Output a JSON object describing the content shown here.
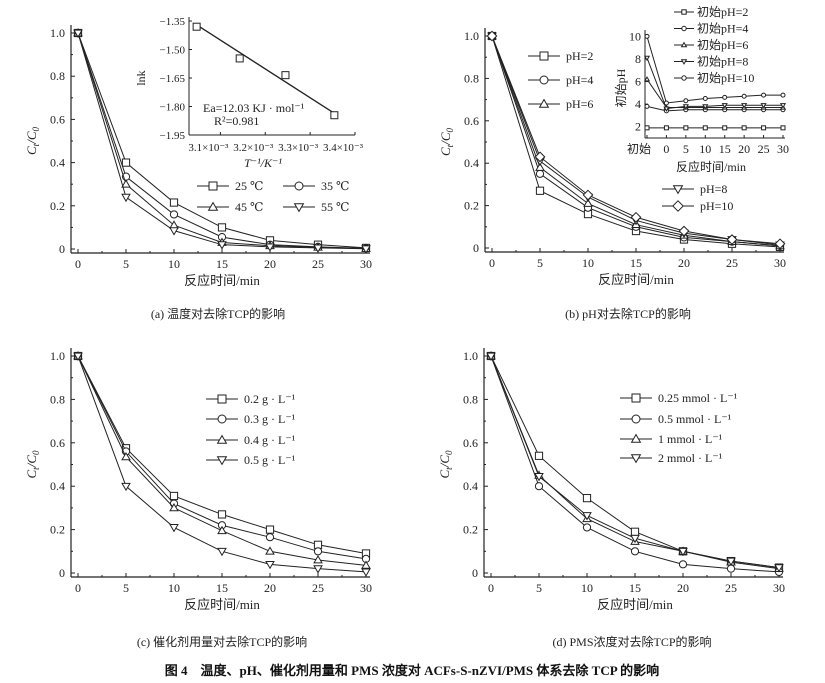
{
  "figure_caption": "图 4　温度、pH、催化剂用量和 PMS 浓度对 ACFs-S-nZVI/PMS 体系去除 TCP 的影响",
  "chart_data": [
    {
      "id": "a",
      "type": "line",
      "caption": "(a) 温度对去除TCP的影响",
      "xlabel": "反应时间/min",
      "ylabel_main": "C",
      "ylabel_sub1": "t",
      "ylabel_mid": "/C",
      "ylabel_sub2": "0",
      "xlim": [
        0,
        30
      ],
      "ylim": [
        0,
        1.0
      ],
      "x_ticks": [
        "0",
        "5",
        "10",
        "15",
        "20",
        "25",
        "30"
      ],
      "y_ticks": [
        "0",
        "0.2",
        "0.4",
        "0.6",
        "0.8",
        "1.0"
      ],
      "x": [
        0,
        5,
        10,
        15,
        20,
        25,
        30
      ],
      "series": [
        {
          "name": "25 ℃",
          "marker": "square",
          "values": [
            1,
            0.4,
            0.215,
            0.1,
            0.04,
            0.02,
            0.005
          ]
        },
        {
          "name": "35 ℃",
          "marker": "circle",
          "values": [
            1,
            0.335,
            0.16,
            0.055,
            0.02,
            0.01,
            0.003
          ]
        },
        {
          "name": "45 ℃",
          "marker": "triangle-up",
          "values": [
            1,
            0.3,
            0.11,
            0.03,
            0.015,
            0.008,
            0.002
          ]
        },
        {
          "name": "55 ℃",
          "marker": "triangle-down",
          "values": [
            1,
            0.24,
            0.085,
            0.02,
            0.01,
            0.005,
            0.001
          ]
        }
      ],
      "inset": {
        "type": "scatter-with-fit",
        "ylabel": "lnk",
        "xlabel": "T⁻¹/K⁻¹",
        "xlim": [
          0.00303,
          0.0034
        ],
        "ylim": [
          -1.95,
          -1.35
        ],
        "x_ticks": [
          0.0031,
          0.0032,
          0.0033,
          0.0034
        ],
        "x_tick_labels": [
          "3.1×10⁻³",
          "3.2×10⁻³",
          "3.3×10⁻³",
          "3.4×10⁻³"
        ],
        "y_ticks": [
          -1.35,
          -1.5,
          -1.65,
          -1.8,
          -1.95
        ],
        "y_tick_labels": [
          "−1.35",
          "−1.50",
          "−1.65",
          "−1.80",
          "−1.95"
        ],
        "points": [
          [
            0.003047,
            -1.38
          ],
          [
            0.003143,
            -1.547
          ],
          [
            0.003245,
            -1.635
          ],
          [
            0.003354,
            -1.846
          ]
        ],
        "fit_line": [
          [
            0.003047,
            -1.37
          ],
          [
            0.003354,
            -1.836
          ]
        ],
        "annotation_ea": "Ea=12.03 KJ · mol⁻¹",
        "annotation_r2": "R²=0.981"
      }
    },
    {
      "id": "b",
      "type": "line",
      "caption": "(b) pH对去除TCP的影响",
      "xlabel": "反应时间/min",
      "ylabel_main": "C",
      "ylabel_sub1": "t",
      "ylabel_mid": "/C",
      "ylabel_sub2": "0",
      "xlim": [
        0,
        30
      ],
      "ylim": [
        0,
        1.0
      ],
      "x_ticks": [
        "0",
        "5",
        "10",
        "15",
        "20",
        "25",
        "30"
      ],
      "y_ticks": [
        "0",
        "0.2",
        "0.4",
        "0.6",
        "0.8",
        "1.0"
      ],
      "x": [
        0,
        5,
        10,
        15,
        20,
        25,
        30
      ],
      "series": [
        {
          "name": "pH=2",
          "marker": "square",
          "values": [
            1,
            0.27,
            0.16,
            0.08,
            0.04,
            0.02,
            0.005
          ]
        },
        {
          "name": "pH=4",
          "marker": "circle",
          "values": [
            1,
            0.35,
            0.19,
            0.1,
            0.05,
            0.03,
            0.01
          ]
        },
        {
          "name": "pH=6",
          "marker": "triangle-up",
          "values": [
            1,
            0.38,
            0.21,
            0.11,
            0.06,
            0.03,
            0.01
          ]
        },
        {
          "name": "pH=8",
          "marker": "triangle-down",
          "values": [
            1,
            0.41,
            0.24,
            0.13,
            0.07,
            0.04,
            0.015
          ]
        },
        {
          "name": "pH=10",
          "marker": "diamond",
          "values": [
            1,
            0.43,
            0.25,
            0.145,
            0.08,
            0.04,
            0.02
          ]
        }
      ],
      "inset": {
        "type": "line",
        "ylabel": "初始pH",
        "xlabel": "反应时间/min",
        "categories": [
          "初始",
          "0",
          "5",
          "10",
          "15",
          "20",
          "25",
          "30"
        ],
        "ylim": [
          1,
          10.3
        ],
        "y_ticks": [
          "2",
          "4",
          "6",
          "8",
          "10"
        ],
        "series": [
          {
            "name": "初始pH=2",
            "marker": "square",
            "values": [
              1.9,
              1.9,
              1.9,
              1.9,
              1.9,
              1.9,
              1.9,
              1.9
            ]
          },
          {
            "name": "初始pH=4",
            "marker": "circle",
            "values": [
              3.8,
              3.4,
              3.5,
              3.5,
              3.5,
              3.5,
              3.5,
              3.5
            ]
          },
          {
            "name": "初始pH=6",
            "marker": "triangle-up",
            "values": [
              6.2,
              3.7,
              3.7,
              3.7,
              3.7,
              3.7,
              3.7,
              3.7
            ]
          },
          {
            "name": "初始pH=8",
            "marker": "triangle-down",
            "values": [
              8.1,
              3.6,
              3.8,
              3.8,
              3.9,
              3.9,
              3.9,
              3.9
            ]
          },
          {
            "name": "初始pH=10",
            "marker": "circle",
            "values": [
              10,
              4.1,
              4.3,
              4.5,
              4.6,
              4.7,
              4.8,
              4.8
            ]
          }
        ]
      }
    },
    {
      "id": "c",
      "type": "line",
      "caption": "(c) 催化剂用量对去除TCP的影响",
      "xlabel": "反应时间/min",
      "ylabel_main": "C",
      "ylabel_sub1": "t",
      "ylabel_mid": "/C",
      "ylabel_sub2": "0",
      "xlim": [
        0,
        30
      ],
      "ylim": [
        0,
        1.0
      ],
      "x_ticks": [
        "0",
        "5",
        "10",
        "15",
        "20",
        "25",
        "30"
      ],
      "y_ticks": [
        "0",
        "0.2",
        "0.4",
        "0.6",
        "0.8",
        "1.0"
      ],
      "x": [
        0,
        5,
        10,
        15,
        20,
        25,
        30
      ],
      "series": [
        {
          "name": "0.2 g · L⁻¹",
          "marker": "square",
          "values": [
            1,
            0.575,
            0.355,
            0.27,
            0.2,
            0.13,
            0.09
          ]
        },
        {
          "name": "0.3 g · L⁻¹",
          "marker": "circle",
          "values": [
            1,
            0.56,
            0.32,
            0.22,
            0.165,
            0.1,
            0.065
          ]
        },
        {
          "name": "0.4 g · L⁻¹",
          "marker": "triangle-up",
          "values": [
            1,
            0.535,
            0.3,
            0.195,
            0.1,
            0.06,
            0.035
          ]
        },
        {
          "name": "0.5 g · L⁻¹",
          "marker": "triangle-down",
          "values": [
            1,
            0.4,
            0.21,
            0.1,
            0.04,
            0.02,
            0.005
          ]
        }
      ]
    },
    {
      "id": "d",
      "type": "line",
      "caption": "(d) PMS浓度对去除TCP的影响",
      "xlabel": "反应时间/min",
      "ylabel_main": "C",
      "ylabel_sub1": "t",
      "ylabel_mid": "/C",
      "ylabel_sub2": "0",
      "xlim": [
        0,
        30
      ],
      "ylim": [
        0,
        1.0
      ],
      "x_ticks": [
        "0",
        "5",
        "10",
        "15",
        "20",
        "25",
        "30"
      ],
      "y_ticks": [
        "0",
        "0.2",
        "0.4",
        "0.6",
        "0.8",
        "1.0"
      ],
      "x": [
        0,
        5,
        10,
        15,
        20,
        25,
        30
      ],
      "series": [
        {
          "name": "0.25 mmol · L⁻¹",
          "marker": "square",
          "values": [
            1,
            0.54,
            0.345,
            0.19,
            0.1,
            0.055,
            0.025
          ]
        },
        {
          "name": "0.5 mmol · L⁻¹",
          "marker": "circle",
          "values": [
            1,
            0.4,
            0.21,
            0.1,
            0.04,
            0.02,
            0.005
          ]
        },
        {
          "name": "1 mmol · L⁻¹",
          "marker": "triangle-up",
          "values": [
            1,
            0.45,
            0.25,
            0.145,
            0.1,
            0.05,
            0.02
          ]
        },
        {
          "name": "2 mmol · L⁻¹",
          "marker": "triangle-down",
          "values": [
            1,
            0.445,
            0.265,
            0.16,
            0.1,
            0.055,
            0.025
          ]
        }
      ]
    }
  ]
}
